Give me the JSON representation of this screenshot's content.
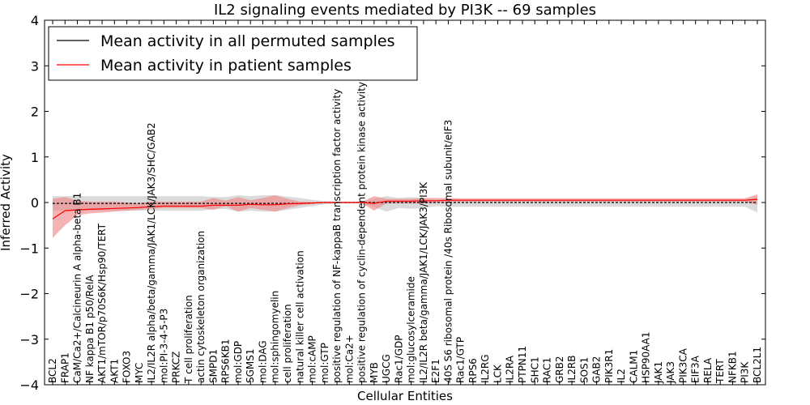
{
  "chart_data": {
    "type": "line",
    "title": "IL2 signaling events mediated by PI3K -- 69 samples",
    "xlabel": "Cellular Entities",
    "ylabel": "Inferred Activity",
    "ylim": [
      -4,
      4
    ],
    "yticks": [
      -4,
      -3,
      -2,
      -1,
      0,
      1,
      2,
      3,
      4
    ],
    "legend_position": "top-left",
    "colors": {
      "permuted": "#000000",
      "patient": "#ff0000",
      "patient_band": "#f08080",
      "permuted_band": "#b0b0b0"
    },
    "categories": [
      "BCL2",
      "FRAP1",
      "CaM/Ca2+/Calcineurin A alpha-beta B1",
      "NF kappa B1 p50/RelA",
      "AKT1/mTOR/p70S6K/Hsp90/TERT",
      "AKT1",
      "FOXO3",
      "MYC",
      "IL2/IL2R alpha/beta/gamma/JAK1/LCK/JAK3/SHC/GAB2",
      "mol:PI-3-4-5-P3",
      "PRKCZ",
      "T cell proliferation",
      "actin cytoskeleton organization",
      "SMPD1",
      "RPS6KB1",
      "mol:GDP",
      "SGMS1",
      "mol:DAG",
      "mol:sphingomyelin",
      "cell proliferation",
      "natural killer cell activation",
      "mol:cAMP",
      "mol:GTP",
      "positive regulation of NF-kappaB transcription factor activity",
      "mol:Ca2+",
      "positive regulation of cyclin-dependent protein kinase activity",
      "MYB",
      "UGCG",
      "Rac1/GDP",
      "mol:glucosylceramide",
      "IL2/IL2R beta/gamma/JAK1/LCK/JAK3/PI3K",
      "E2F1",
      "40S S6 ribosomal protein /40s Ribosomal subunit/eIF3",
      "Rac1/GTP",
      "RPS6",
      "IL2RG",
      "LCK",
      "IL2RA",
      "PTPN11",
      "SHC1",
      "RAC1",
      "GRB2",
      "IL2RB",
      "SOS1",
      "GAB2",
      "PIK3R1",
      "IL2",
      "CALM1",
      "HSP90AA1",
      "JAK1",
      "JAK3",
      "PIK3CA",
      "EIF3A",
      "RELA",
      "TERT",
      "NFKB1",
      "PI3K",
      "BCL2L1"
    ],
    "series": [
      {
        "name": "Mean activity in all permuted samples",
        "values": [
          -0.02,
          -0.02,
          -0.02,
          -0.02,
          -0.02,
          -0.02,
          -0.02,
          -0.02,
          -0.02,
          -0.02,
          -0.02,
          -0.02,
          -0.02,
          -0.02,
          -0.02,
          -0.02,
          -0.02,
          -0.02,
          -0.02,
          -0.02,
          -0.02,
          -0.01,
          0,
          0,
          0,
          0,
          0,
          0,
          0,
          0,
          0,
          0,
          0,
          0,
          0,
          0,
          0,
          0,
          0,
          0,
          0,
          0,
          0,
          0,
          0,
          0,
          0,
          0,
          0,
          0,
          0,
          0,
          0,
          0,
          0,
          0,
          0,
          0
        ],
        "lower": [
          -0.18,
          -0.18,
          -0.18,
          -0.18,
          -0.18,
          -0.18,
          -0.18,
          -0.18,
          -0.18,
          -0.18,
          -0.18,
          -0.18,
          -0.18,
          -0.15,
          -0.14,
          -0.2,
          -0.18,
          -0.2,
          -0.2,
          -0.16,
          -0.12,
          -0.08,
          -0.04,
          -0.02,
          -0.02,
          -0.02,
          -0.1,
          -0.2,
          -0.12,
          -0.14,
          -0.12,
          -0.08,
          -0.1,
          -0.09,
          -0.09,
          -0.09,
          -0.09,
          -0.09,
          -0.09,
          -0.09,
          -0.09,
          -0.09,
          -0.09,
          -0.09,
          -0.09,
          -0.09,
          -0.09,
          -0.09,
          -0.09,
          -0.09,
          -0.09,
          -0.09,
          -0.09,
          -0.09,
          -0.09,
          -0.09,
          -0.09,
          -0.22
        ],
        "upper": [
          0.14,
          0.14,
          0.14,
          0.14,
          0.14,
          0.14,
          0.14,
          0.14,
          0.14,
          0.14,
          0.14,
          0.14,
          0.14,
          0.12,
          0.12,
          0.16,
          0.14,
          0.16,
          0.16,
          0.13,
          0.1,
          0.06,
          0.03,
          0.02,
          0.02,
          0.02,
          0.08,
          0.14,
          0.1,
          0.12,
          0.1,
          0.06,
          0.08,
          0.07,
          0.07,
          0.07,
          0.07,
          0.07,
          0.07,
          0.07,
          0.07,
          0.07,
          0.07,
          0.07,
          0.07,
          0.07,
          0.07,
          0.07,
          0.07,
          0.07,
          0.07,
          0.07,
          0.07,
          0.07,
          0.07,
          0.07,
          0.07,
          0.12
        ]
      },
      {
        "name": "Mean activity in patient samples",
        "values": [
          -0.36,
          -0.18,
          -0.16,
          -0.15,
          -0.14,
          -0.13,
          -0.12,
          -0.11,
          -0.09,
          -0.08,
          -0.08,
          -0.08,
          -0.08,
          -0.06,
          -0.06,
          -0.06,
          -0.04,
          -0.05,
          -0.05,
          -0.03,
          -0.02,
          -0.01,
          0,
          0,
          0,
          0,
          -0.02,
          0.03,
          0.03,
          0.03,
          0.04,
          0.04,
          0.05,
          0.05,
          0.05,
          0.05,
          0.05,
          0.05,
          0.05,
          0.05,
          0.05,
          0.05,
          0.05,
          0.05,
          0.05,
          0.05,
          0.05,
          0.05,
          0.05,
          0.05,
          0.05,
          0.05,
          0.05,
          0.05,
          0.05,
          0.05,
          0.05,
          0.07
        ],
        "lower": [
          -0.78,
          -0.5,
          -0.28,
          -0.24,
          -0.22,
          -0.2,
          -0.18,
          -0.16,
          -0.14,
          -0.12,
          -0.12,
          -0.12,
          -0.12,
          -0.16,
          -0.08,
          -0.2,
          -0.12,
          -0.16,
          -0.2,
          -0.12,
          -0.06,
          -0.03,
          -0.01,
          -0.01,
          -0.01,
          -0.01,
          -0.18,
          -0.02,
          -0.02,
          -0.02,
          -0.02,
          0,
          0.01,
          0.02,
          0.02,
          0.02,
          0.02,
          0.02,
          0.02,
          0.02,
          0.02,
          0.02,
          0.02,
          0.02,
          0.02,
          0.02,
          0.02,
          0.02,
          0.02,
          0.02,
          0.02,
          0.02,
          0.02,
          0.02,
          0.02,
          0.02,
          0.02,
          -0.05
        ],
        "upper": [
          0.08,
          0.12,
          0.04,
          0.02,
          0.02,
          0.02,
          0.0,
          -0.02,
          0.02,
          0.02,
          0.02,
          0.02,
          0.02,
          0.1,
          0.04,
          0.12,
          0.05,
          0.1,
          0.16,
          0.08,
          0.02,
          0.01,
          0.01,
          0.01,
          0.01,
          0.01,
          0.14,
          0.08,
          0.08,
          0.08,
          0.1,
          0.1,
          0.1,
          0.09,
          0.09,
          0.09,
          0.09,
          0.09,
          0.09,
          0.09,
          0.09,
          0.09,
          0.09,
          0.09,
          0.09,
          0.09,
          0.09,
          0.09,
          0.09,
          0.09,
          0.09,
          0.09,
          0.09,
          0.09,
          0.09,
          0.09,
          0.09,
          0.18
        ]
      }
    ]
  }
}
